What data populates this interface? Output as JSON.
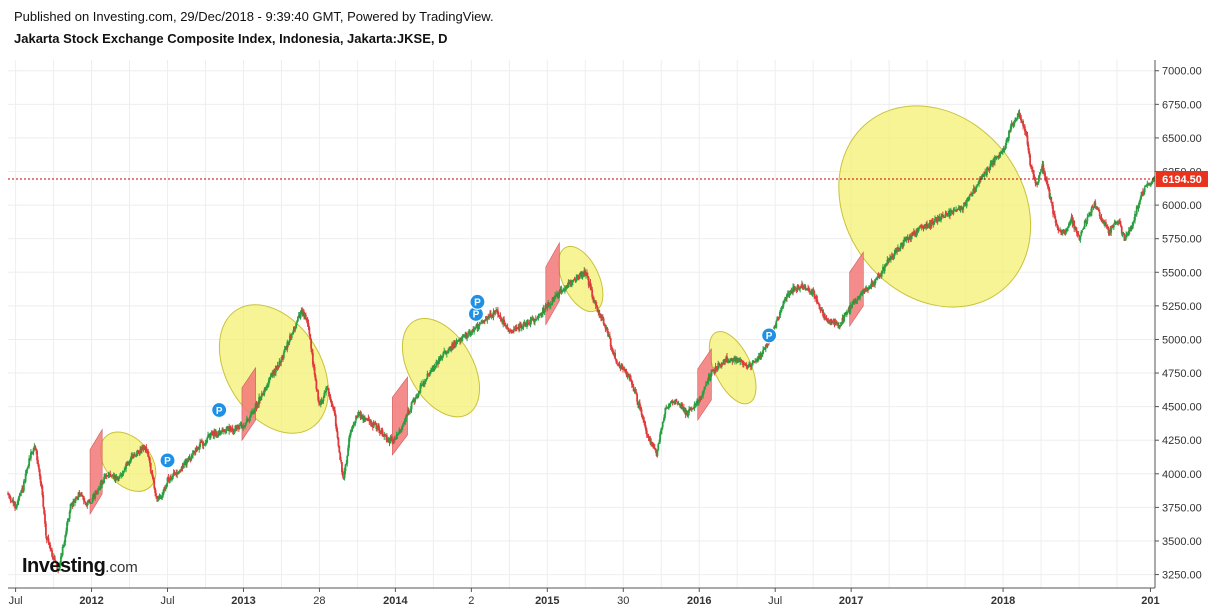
{
  "header": {
    "published": "Published on Investing.com, 29/Dec/2018 - 9:39:40 GMT, Powered by TradingView.",
    "title": "Jakarta Stock Exchange Composite Index, Indonesia, Jakarta:JKSE, D"
  },
  "brand": {
    "name": "Investing",
    "suffix": ".com"
  },
  "colors": {
    "up": "#26a041",
    "down": "#e03a3a",
    "last_price_line": "#cc0000",
    "last_price_badge": "#e8331f",
    "highlight_up": "#f4f06a",
    "highlight_down": "#f27878",
    "marker": "#1e90e6",
    "grid": "#eeeeee",
    "axis_text": "#333333"
  },
  "chart_data": {
    "type": "candlestick",
    "title": "Jakarta Stock Exchange Composite Index, Indonesia, Jakarta:JKSE, D",
    "timeframe": "D",
    "ylim": [
      3150,
      7080
    ],
    "y_ticks": [
      3250,
      3500,
      3750,
      4000,
      4250,
      4500,
      4750,
      5000,
      5250,
      5500,
      5750,
      6000,
      6250,
      6500,
      6750,
      7000
    ],
    "y_tick_labels": [
      "3250.00",
      "3500.00",
      "3750.00",
      "4000.00",
      "4250.00",
      "4500.00",
      "4750.00",
      "5000.00",
      "5250.00",
      "5500.00",
      "5750.00",
      "6000.00",
      "6250.00",
      "6500.00",
      "6750.00",
      "7000.00"
    ],
    "xlim": [
      2011.45,
      2019.0
    ],
    "x_ticks": [
      {
        "t": 2011.5,
        "label": "Jul",
        "bold": false
      },
      {
        "t": 2012.0,
        "label": "2012",
        "bold": true
      },
      {
        "t": 2012.5,
        "label": "Jul",
        "bold": false
      },
      {
        "t": 2013.0,
        "label": "2013",
        "bold": true
      },
      {
        "t": 2013.5,
        "label": "28",
        "bold": false
      },
      {
        "t": 2014.0,
        "label": "2014",
        "bold": true
      },
      {
        "t": 2014.5,
        "label": "2",
        "bold": false
      },
      {
        "t": 2015.0,
        "label": "2015",
        "bold": true
      },
      {
        "t": 2015.5,
        "label": "30",
        "bold": false
      },
      {
        "t": 2016.0,
        "label": "2016",
        "bold": true
      },
      {
        "t": 2016.5,
        "label": "Jul",
        "bold": false
      },
      {
        "t": 2017.0,
        "label": "2017",
        "bold": true
      },
      {
        "t": 2018.0,
        "label": "2018",
        "bold": true
      },
      {
        "t": 2018.97,
        "label": "201",
        "bold": true
      }
    ],
    "last_price": 6194.5,
    "last_price_label": "6194.50",
    "path": [
      [
        2011.45,
        3850
      ],
      [
        2011.5,
        3750
      ],
      [
        2011.55,
        3900
      ],
      [
        2011.6,
        4150
      ],
      [
        2011.63,
        4200
      ],
      [
        2011.67,
        3900
      ],
      [
        2011.7,
        3550
      ],
      [
        2011.74,
        3400
      ],
      [
        2011.78,
        3280
      ],
      [
        2011.82,
        3500
      ],
      [
        2011.86,
        3750
      ],
      [
        2011.92,
        3850
      ],
      [
        2011.97,
        3780
      ],
      [
        2012.0,
        3800
      ],
      [
        2012.05,
        3900
      ],
      [
        2012.1,
        4000
      ],
      [
        2012.17,
        3950
      ],
      [
        2012.25,
        4100
      ],
      [
        2012.3,
        4150
      ],
      [
        2012.35,
        4200
      ],
      [
        2012.38,
        4100
      ],
      [
        2012.42,
        3850
      ],
      [
        2012.45,
        3800
      ],
      [
        2012.5,
        3950
      ],
      [
        2012.6,
        4050
      ],
      [
        2012.7,
        4200
      ],
      [
        2012.8,
        4300
      ],
      [
        2012.9,
        4330
      ],
      [
        2013.0,
        4350
      ],
      [
        2013.08,
        4500
      ],
      [
        2013.17,
        4700
      ],
      [
        2013.25,
        4850
      ],
      [
        2013.32,
        5050
      ],
      [
        2013.38,
        5200
      ],
      [
        2013.42,
        5150
      ],
      [
        2013.46,
        4800
      ],
      [
        2013.5,
        4500
      ],
      [
        2013.55,
        4650
      ],
      [
        2013.6,
        4450
      ],
      [
        2013.63,
        4150
      ],
      [
        2013.66,
        3950
      ],
      [
        2013.7,
        4300
      ],
      [
        2013.75,
        4450
      ],
      [
        2013.8,
        4400
      ],
      [
        2013.88,
        4350
      ],
      [
        2013.95,
        4250
      ],
      [
        2014.0,
        4250
      ],
      [
        2014.08,
        4450
      ],
      [
        2014.17,
        4650
      ],
      [
        2014.25,
        4800
      ],
      [
        2014.33,
        4900
      ],
      [
        2014.42,
        5000
      ],
      [
        2014.5,
        5050
      ],
      [
        2014.58,
        5150
      ],
      [
        2014.67,
        5200
      ],
      [
        2014.75,
        5050
      ],
      [
        2014.83,
        5100
      ],
      [
        2014.92,
        5150
      ],
      [
        2015.0,
        5250
      ],
      [
        2015.08,
        5350
      ],
      [
        2015.17,
        5450
      ],
      [
        2015.25,
        5500
      ],
      [
        2015.32,
        5250
      ],
      [
        2015.38,
        5100
      ],
      [
        2015.45,
        4850
      ],
      [
        2015.55,
        4700
      ],
      [
        2015.62,
        4450
      ],
      [
        2015.67,
        4250
      ],
      [
        2015.72,
        4150
      ],
      [
        2015.78,
        4500
      ],
      [
        2015.85,
        4550
      ],
      [
        2015.92,
        4450
      ],
      [
        2016.0,
        4550
      ],
      [
        2016.08,
        4750
      ],
      [
        2016.17,
        4850
      ],
      [
        2016.25,
        4850
      ],
      [
        2016.33,
        4800
      ],
      [
        2016.42,
        4900
      ],
      [
        2016.5,
        5100
      ],
      [
        2016.58,
        5350
      ],
      [
        2016.67,
        5400
      ],
      [
        2016.75,
        5350
      ],
      [
        2016.83,
        5150
      ],
      [
        2016.92,
        5100
      ],
      [
        2017.0,
        5250
      ],
      [
        2017.08,
        5350
      ],
      [
        2017.17,
        5450
      ],
      [
        2017.25,
        5600
      ],
      [
        2017.33,
        5700
      ],
      [
        2017.42,
        5800
      ],
      [
        2017.5,
        5850
      ],
      [
        2017.58,
        5900
      ],
      [
        2017.67,
        5950
      ],
      [
        2017.75,
        6000
      ],
      [
        2017.83,
        6150
      ],
      [
        2017.92,
        6300
      ],
      [
        2018.0,
        6400
      ],
      [
        2018.06,
        6600
      ],
      [
        2018.1,
        6680
      ],
      [
        2018.15,
        6550
      ],
      [
        2018.18,
        6300
      ],
      [
        2018.22,
        6150
      ],
      [
        2018.26,
        6300
      ],
      [
        2018.3,
        6100
      ],
      [
        2018.35,
        5850
      ],
      [
        2018.4,
        5800
      ],
      [
        2018.45,
        5900
      ],
      [
        2018.5,
        5750
      ],
      [
        2018.55,
        5900
      ],
      [
        2018.6,
        6000
      ],
      [
        2018.65,
        5900
      ],
      [
        2018.7,
        5800
      ],
      [
        2018.75,
        5900
      ],
      [
        2018.8,
        5750
      ],
      [
        2018.85,
        5850
      ],
      [
        2018.9,
        6050
      ],
      [
        2018.95,
        6150
      ],
      [
        2019.0,
        6195
      ]
    ],
    "highlights": [
      {
        "kind": "ellipse",
        "cx": 2012.24,
        "cy": 4090,
        "rx": 0.15,
        "ry": 250,
        "angle": -40
      },
      {
        "kind": "ellipse",
        "cx": 2013.2,
        "cy": 4780,
        "rx": 0.31,
        "ry": 520,
        "angle": -32
      },
      {
        "kind": "ellipse",
        "cx": 2014.3,
        "cy": 4790,
        "rx": 0.21,
        "ry": 400,
        "angle": -30
      },
      {
        "kind": "ellipse",
        "cx": 2015.22,
        "cy": 5450,
        "rx": 0.12,
        "ry": 260,
        "angle": -25
      },
      {
        "kind": "ellipse",
        "cx": 2016.22,
        "cy": 4790,
        "rx": 0.12,
        "ry": 290,
        "angle": -25
      },
      {
        "kind": "ellipse",
        "cx": 2017.55,
        "cy": 5990,
        "rx": 0.58,
        "ry": 800,
        "angle": -38
      },
      {
        "kind": "parallelogram",
        "t0": 2011.99,
        "t1": 2012.07,
        "low": 3700,
        "high": 4180,
        "shift": 150
      },
      {
        "kind": "parallelogram",
        "t0": 2012.99,
        "t1": 2013.08,
        "low": 4250,
        "high": 4640,
        "shift": 150
      },
      {
        "kind": "parallelogram",
        "t0": 2013.98,
        "t1": 2014.08,
        "low": 4140,
        "high": 4570,
        "shift": 150
      },
      {
        "kind": "parallelogram",
        "t0": 2014.99,
        "t1": 2015.08,
        "low": 5110,
        "high": 5540,
        "shift": 180
      },
      {
        "kind": "parallelogram",
        "t0": 2015.99,
        "t1": 2016.08,
        "low": 4400,
        "high": 4780,
        "shift": 150
      },
      {
        "kind": "parallelogram",
        "t0": 2016.99,
        "t1": 2017.08,
        "low": 5100,
        "high": 5500,
        "shift": 150
      }
    ],
    "markers": [
      {
        "t": 2012.5,
        "price": 4100,
        "label": "P"
      },
      {
        "t": 2012.84,
        "price": 4475,
        "label": "P"
      },
      {
        "t": 2014.53,
        "price": 5190,
        "label": "P"
      },
      {
        "t": 2014.54,
        "price": 5280,
        "label": "P"
      },
      {
        "t": 2016.46,
        "price": 5030,
        "label": "P"
      }
    ]
  }
}
